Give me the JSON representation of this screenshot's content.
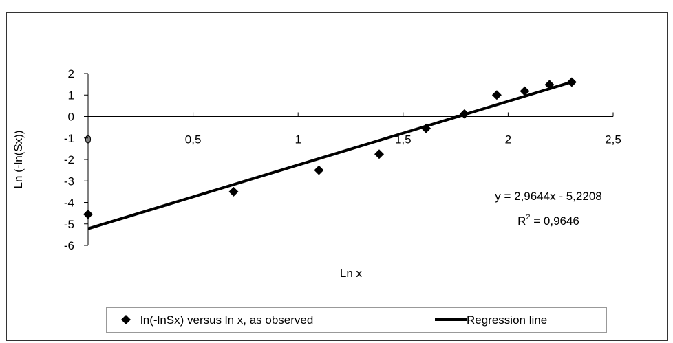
{
  "chart_data": {
    "type": "scatter",
    "title": "",
    "xlabel": "Ln x",
    "ylabel": "Ln (-ln(Sx))",
    "xlim": [
      0,
      2.5
    ],
    "ylim": [
      -6,
      2
    ],
    "x_ticks": [
      "0",
      "0,5",
      "1",
      "1,5",
      "2",
      "2,5"
    ],
    "y_ticks": [
      "2",
      "1",
      "0",
      "-1",
      "-2",
      "-3",
      "-4",
      "-5",
      "-6"
    ],
    "grid": false,
    "legend_position": "bottom",
    "series": [
      {
        "name": "ln(-lnSx) versus ln x, as observed",
        "marker": "diamond",
        "color": "#000000",
        "x": [
          0,
          0.693,
          1.099,
          1.386,
          1.609,
          1.792,
          1.946,
          2.079,
          2.197,
          2.303
        ],
        "y": [
          -4.55,
          -3.5,
          -2.5,
          -1.75,
          -0.55,
          0.12,
          1.0,
          1.18,
          1.48,
          1.6
        ]
      },
      {
        "name": "Regression line",
        "type": "line",
        "color": "#000000",
        "slope": 2.9644,
        "intercept": -5.2208,
        "x_range": [
          0,
          2.303
        ]
      }
    ],
    "annotations": {
      "equation": "y = 2,9644x - 5,2208",
      "r2_base": "R",
      "r2_sup": "2",
      "r2_value": " = 0,9646"
    }
  }
}
